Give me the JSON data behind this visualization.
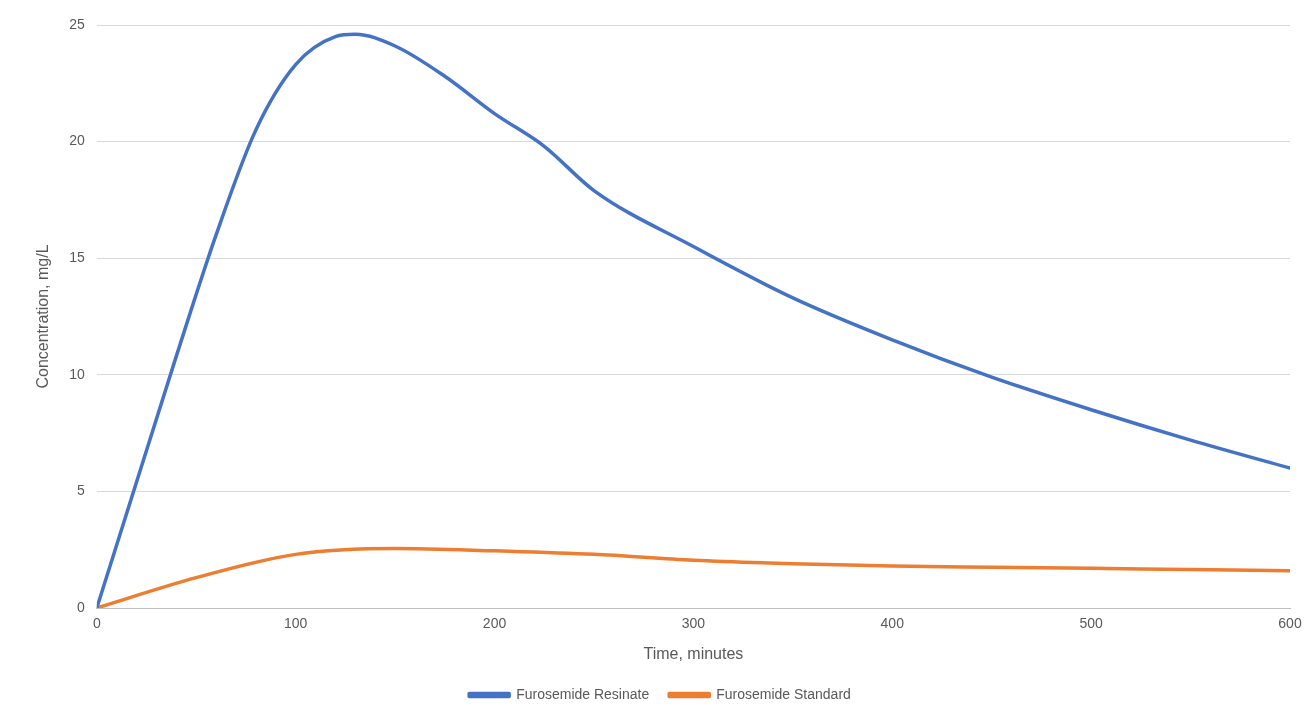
{
  "chart_data": {
    "type": "line",
    "xlabel": "Time, minutes",
    "ylabel": "Concentration, mg/L",
    "xlim": [
      0,
      600
    ],
    "xticks": [
      0,
      100,
      200,
      300,
      400,
      500,
      600
    ],
    "ylim": [
      0,
      25
    ],
    "yticks": [
      0,
      5,
      10,
      15,
      20,
      25
    ],
    "grid": "y",
    "legend": "bottom",
    "marker": "none",
    "line_style": "solid",
    "series": [
      {
        "name": "Furosemide Resinate",
        "color": "#4472c4",
        "x": [
          0,
          20,
          40,
          60,
          80,
          100,
          120,
          130,
          150,
          175,
          200,
          225,
          250,
          300,
          350,
          400,
          450,
          500,
          550,
          600
        ],
        "values": [
          0,
          5.4,
          10.8,
          16,
          20.5,
          23.3,
          24.5,
          24.6,
          24.1,
          22.8,
          21.2,
          19.8,
          17.9,
          15.5,
          13.3,
          11.5,
          9.9,
          8.5,
          7.2,
          6.0
        ]
      },
      {
        "name": "Furosemide Standard",
        "color": "#ed7d31",
        "x": [
          0,
          50,
          100,
          150,
          200,
          250,
          300,
          350,
          400,
          450,
          500,
          550,
          600
        ],
        "values": [
          0,
          1.3,
          2.3,
          2.55,
          2.45,
          2.3,
          2.05,
          1.9,
          1.8,
          1.75,
          1.7,
          1.65,
          1.6
        ]
      }
    ]
  }
}
